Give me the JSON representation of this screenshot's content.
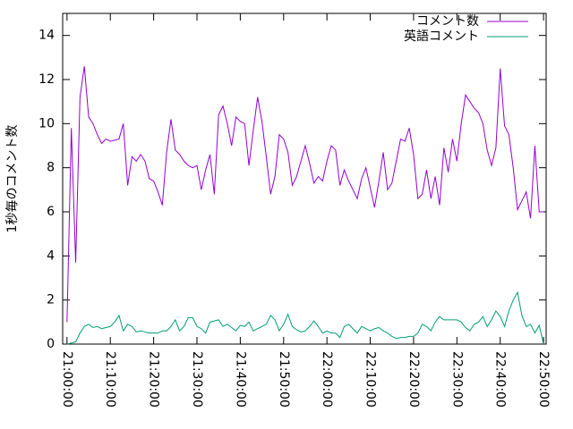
{
  "chart_data": {
    "type": "line",
    "ylabel": "1秒毎のコメント数",
    "x": [
      "21:00:00",
      "21:01:00",
      "21:02:00",
      "21:03:00",
      "21:04:00",
      "21:05:00",
      "21:06:00",
      "21:07:00",
      "21:08:00",
      "21:09:00",
      "21:10:00",
      "21:11:00",
      "21:12:00",
      "21:13:00",
      "21:14:00",
      "21:15:00",
      "21:16:00",
      "21:17:00",
      "21:18:00",
      "21:19:00",
      "21:20:00",
      "21:21:00",
      "21:22:00",
      "21:23:00",
      "21:24:00",
      "21:25:00",
      "21:26:00",
      "21:27:00",
      "21:28:00",
      "21:29:00",
      "21:30:00",
      "21:31:00",
      "21:32:00",
      "21:33:00",
      "21:34:00",
      "21:35:00",
      "21:36:00",
      "21:37:00",
      "21:38:00",
      "21:39:00",
      "21:40:00",
      "21:41:00",
      "21:42:00",
      "21:43:00",
      "21:44:00",
      "21:45:00",
      "21:46:00",
      "21:47:00",
      "21:48:00",
      "21:49:00",
      "21:50:00",
      "21:51:00",
      "21:52:00",
      "21:53:00",
      "21:54:00",
      "21:55:00",
      "21:56:00",
      "21:57:00",
      "21:58:00",
      "21:59:00",
      "22:00:00",
      "22:01:00",
      "22:02:00",
      "22:03:00",
      "22:04:00",
      "22:05:00",
      "22:06:00",
      "22:07:00",
      "22:08:00",
      "22:09:00",
      "22:10:00",
      "22:11:00",
      "22:12:00",
      "22:13:00",
      "22:14:00",
      "22:15:00",
      "22:16:00",
      "22:17:00",
      "22:18:00",
      "22:19:00",
      "22:20:00",
      "22:21:00",
      "22:22:00",
      "22:23:00",
      "22:24:00",
      "22:25:00",
      "22:26:00",
      "22:27:00",
      "22:28:00",
      "22:29:00",
      "22:30:00",
      "22:31:00",
      "22:32:00",
      "22:33:00",
      "22:34:00",
      "22:35:00",
      "22:36:00",
      "22:37:00",
      "22:38:00",
      "22:39:00",
      "22:40:00",
      "22:41:00",
      "22:42:00",
      "22:43:00",
      "22:44:00",
      "22:45:00",
      "22:46:00",
      "22:47:00",
      "22:48:00",
      "22:49:00",
      "22:50:00"
    ],
    "series": [
      {
        "name": "コメント数",
        "color": "#9400d3",
        "values": [
          1.0,
          9.8,
          3.7,
          11.2,
          12.6,
          10.3,
          10.0,
          9.5,
          9.1,
          9.3,
          9.2,
          9.25,
          9.3,
          10.0,
          7.2,
          8.5,
          8.3,
          8.6,
          8.3,
          7.5,
          7.4,
          6.9,
          6.3,
          8.7,
          10.2,
          8.8,
          8.6,
          8.3,
          8.1,
          8.0,
          8.1,
          7.0,
          7.9,
          8.6,
          6.8,
          10.4,
          10.8,
          10.0,
          9.0,
          10.3,
          10.1,
          10.0,
          8.1,
          9.7,
          11.2,
          10.1,
          8.5,
          6.8,
          7.6,
          9.5,
          9.3,
          8.7,
          7.2,
          7.6,
          8.3,
          9.0,
          8.2,
          7.3,
          7.6,
          7.4,
          8.3,
          9.0,
          8.8,
          7.2,
          7.9,
          7.4,
          7.0,
          6.6,
          7.5,
          8.0,
          7.1,
          6.2,
          7.4,
          8.7,
          7.0,
          7.3,
          8.3,
          9.3,
          9.2,
          9.8,
          8.6,
          6.6,
          6.8,
          7.9,
          6.6,
          7.6,
          6.3,
          8.9,
          7.8,
          9.3,
          8.3,
          10.0,
          11.3,
          11.0,
          10.7,
          10.5,
          10.0,
          8.8,
          8.1,
          8.9,
          12.5,
          9.9,
          9.5,
          8.0,
          6.1,
          6.5,
          6.9,
          5.7,
          9.0,
          6.0,
          6.0
        ]
      },
      {
        "name": "英語コメント",
        "color": "#009e73",
        "values": [
          0,
          0.05,
          0.1,
          0.5,
          0.8,
          0.9,
          0.75,
          0.8,
          0.7,
          0.75,
          0.8,
          1.0,
          1.3,
          0.6,
          0.9,
          0.8,
          0.55,
          0.6,
          0.55,
          0.5,
          0.5,
          0.5,
          0.6,
          0.6,
          0.8,
          1.1,
          0.6,
          0.8,
          1.2,
          1.2,
          0.8,
          0.7,
          0.5,
          1.0,
          1.05,
          1.1,
          0.8,
          0.9,
          0.75,
          0.6,
          0.85,
          0.8,
          1.0,
          0.6,
          0.7,
          0.8,
          0.9,
          1.3,
          1.1,
          0.6,
          0.9,
          1.35,
          0.8,
          0.65,
          0.55,
          0.6,
          0.8,
          1.05,
          0.8,
          0.5,
          0.6,
          0.5,
          0.5,
          0.3,
          0.8,
          0.9,
          0.7,
          0.5,
          0.8,
          0.7,
          0.6,
          0.7,
          0.75,
          0.6,
          0.5,
          0.35,
          0.25,
          0.3,
          0.3,
          0.35,
          0.35,
          0.5,
          0.9,
          0.8,
          0.6,
          1.0,
          1.25,
          1.1,
          1.1,
          1.1,
          1.1,
          1.0,
          0.75,
          0.6,
          0.9,
          1.0,
          1.25,
          0.8,
          1.1,
          1.5,
          1.25,
          0.8,
          1.5,
          2.0,
          2.35,
          1.3,
          0.8,
          0.9,
          0.5,
          0.85,
          0.0
        ]
      }
    ],
    "xlim": [
      "20:59:00",
      "22:50:36"
    ],
    "xticks": [
      "21:00:00",
      "21:10:00",
      "21:20:00",
      "21:30:00",
      "21:40:00",
      "21:50:00",
      "22:00:00",
      "22:10:00",
      "22:20:00",
      "22:30:00",
      "22:40:00",
      "22:50:00"
    ],
    "ylim": [
      0,
      15
    ],
    "yticks": [
      0,
      2,
      4,
      6,
      8,
      10,
      12,
      14
    ],
    "legend": "top-right"
  }
}
